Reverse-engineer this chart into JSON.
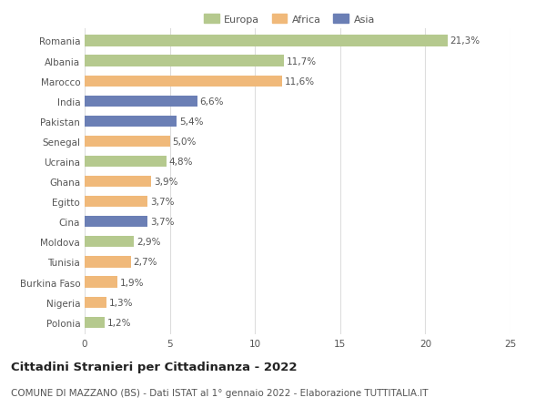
{
  "countries": [
    "Romania",
    "Albania",
    "Marocco",
    "India",
    "Pakistan",
    "Senegal",
    "Ucraina",
    "Ghana",
    "Egitto",
    "Cina",
    "Moldova",
    "Tunisia",
    "Burkina Faso",
    "Nigeria",
    "Polonia"
  ],
  "values": [
    21.3,
    11.7,
    11.6,
    6.6,
    5.4,
    5.0,
    4.8,
    3.9,
    3.7,
    3.7,
    2.9,
    2.7,
    1.9,
    1.3,
    1.2
  ],
  "labels": [
    "21,3%",
    "11,7%",
    "11,6%",
    "6,6%",
    "5,4%",
    "5,0%",
    "4,8%",
    "3,9%",
    "3,7%",
    "3,7%",
    "2,9%",
    "2,7%",
    "1,9%",
    "1,3%",
    "1,2%"
  ],
  "continents": [
    "Europa",
    "Europa",
    "Africa",
    "Asia",
    "Asia",
    "Africa",
    "Europa",
    "Africa",
    "Africa",
    "Asia",
    "Europa",
    "Africa",
    "Africa",
    "Africa",
    "Europa"
  ],
  "colors": {
    "Europa": "#b5c98e",
    "Africa": "#f0b97a",
    "Asia": "#6b7fb5"
  },
  "legend_labels": [
    "Europa",
    "Africa",
    "Asia"
  ],
  "legend_colors": [
    "#b5c98e",
    "#f0b97a",
    "#6b7fb5"
  ],
  "title": "Cittadini Stranieri per Cittadinanza - 2022",
  "subtitle": "COMUNE DI MAZZANO (BS) - Dati ISTAT al 1° gennaio 2022 - Elaborazione TUTTITALIA.IT",
  "xlim": [
    0,
    25
  ],
  "xticks": [
    0,
    5,
    10,
    15,
    20,
    25
  ],
  "background_color": "#ffffff",
  "grid_color": "#dddddd",
  "bar_height": 0.55,
  "label_fontsize": 7.5,
  "tick_fontsize": 7.5,
  "title_fontsize": 9.5,
  "subtitle_fontsize": 7.5
}
